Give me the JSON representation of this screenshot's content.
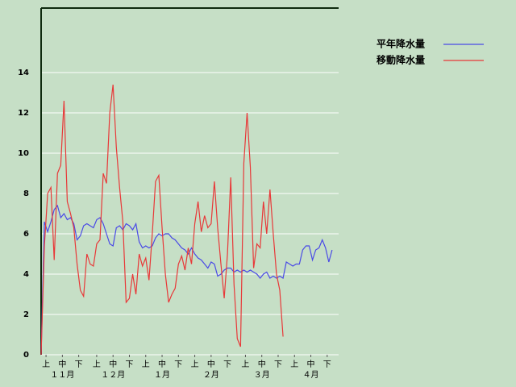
{
  "chart_data": {
    "type": "line",
    "x": [
      0,
      2,
      4,
      6,
      8,
      10,
      12,
      14,
      16,
      18,
      20,
      22,
      24,
      26,
      28,
      30,
      32,
      34,
      36,
      38,
      40,
      42,
      44,
      46,
      48,
      50,
      52,
      54,
      56,
      58,
      60,
      62,
      64,
      66,
      68,
      70,
      72,
      74,
      76,
      78,
      80,
      82,
      84,
      86,
      88,
      90,
      92,
      94,
      96,
      98,
      100,
      102,
      104,
      106,
      108,
      110,
      112,
      114,
      116,
      118,
      120,
      122,
      124,
      126,
      128,
      130,
      132,
      134,
      136,
      138,
      140,
      142,
      144,
      146,
      148,
      150,
      152,
      154,
      156,
      158,
      160,
      162,
      164,
      166,
      168,
      170,
      172,
      174,
      176,
      178
    ],
    "series": [
      {
        "name": "平年降水量",
        "color": "#4a4ae6",
        "values": [
          0,
          6.6,
          6.1,
          6.6,
          7.2,
          7.4,
          6.8,
          7.0,
          6.7,
          6.8,
          6.5,
          5.7,
          5.9,
          6.4,
          6.5,
          6.4,
          6.3,
          6.7,
          6.8,
          6.5,
          6.0,
          5.5,
          5.4,
          6.3,
          6.4,
          6.2,
          6.5,
          6.4,
          6.2,
          6.5,
          5.6,
          5.3,
          5.4,
          5.3,
          5.4,
          5.8,
          6.0,
          5.9,
          6.0,
          6.0,
          5.8,
          5.7,
          5.5,
          5.3,
          5.2,
          5.0,
          5.3,
          5.0,
          4.8,
          4.7,
          4.5,
          4.3,
          4.6,
          4.5,
          3.9,
          4.0,
          4.2,
          4.3,
          4.3,
          4.1,
          4.2,
          4.1,
          4.2,
          4.1,
          4.2,
          4.1,
          4.0,
          3.8,
          4.0,
          4.1,
          3.8,
          3.9,
          3.8,
          3.9,
          3.8,
          4.6,
          4.5,
          4.4,
          4.5,
          4.5,
          5.2,
          5.4,
          5.4,
          4.7,
          5.2,
          5.3,
          5.7,
          5.3,
          4.6,
          5.2
        ]
      },
      {
        "name": "移動降水量",
        "color": "#e83838",
        "values": [
          0,
          5.4,
          8.0,
          8.3,
          4.7,
          9.0,
          9.4,
          12.6,
          7.6,
          7.0,
          6.3,
          4.5,
          3.2,
          2.9,
          5.0,
          4.5,
          4.4,
          5.5,
          5.7,
          9.0,
          8.5,
          12.0,
          13.4,
          10.3,
          8.3,
          6.6,
          2.6,
          2.8,
          4.0,
          3.0,
          5.0,
          4.4,
          4.8,
          3.7,
          6.0,
          8.6,
          8.9,
          6.3,
          4.0,
          2.6,
          3.0,
          3.3,
          4.5,
          4.9,
          4.2,
          5.3,
          4.5,
          6.5,
          7.6,
          6.1,
          6.9,
          6.3,
          6.5,
          8.6,
          6.3,
          4.5,
          2.8,
          5.0,
          8.8,
          3.5,
          0.8,
          0.4,
          9.5,
          12.0,
          9.3,
          4.3,
          5.5,
          5.3,
          7.6,
          6.0,
          8.2,
          6.0,
          4.0,
          3.2,
          0.9,
          null,
          null,
          null,
          null,
          null,
          null,
          null,
          null,
          null,
          null,
          null,
          null,
          null,
          null,
          null
        ]
      }
    ],
    "xlim": [
      0,
      182
    ],
    "xticks": [
      {
        "value": 3,
        "label": "上"
      },
      {
        "value": 13,
        "label": "中"
      },
      {
        "value": 23,
        "label": "下"
      },
      {
        "value": 34,
        "label": "上"
      },
      {
        "value": 44,
        "label": "中"
      },
      {
        "value": 54,
        "label": "下"
      },
      {
        "value": 64,
        "label": "上"
      },
      {
        "value": 74,
        "label": "中"
      },
      {
        "value": 84,
        "label": "下"
      },
      {
        "value": 94,
        "label": "上"
      },
      {
        "value": 104,
        "label": "中"
      },
      {
        "value": 114,
        "label": "下"
      },
      {
        "value": 125,
        "label": "上"
      },
      {
        "value": 135,
        "label": "中"
      },
      {
        "value": 145,
        "label": "下"
      },
      {
        "value": 155,
        "label": "上"
      },
      {
        "value": 165,
        "label": "中"
      },
      {
        "value": 175,
        "label": "下"
      }
    ],
    "month_labels": [
      {
        "value": 13,
        "label": "１１月"
      },
      {
        "value": 44,
        "label": "１２月"
      },
      {
        "value": 74,
        "label": "１月"
      },
      {
        "value": 104,
        "label": "２月"
      },
      {
        "value": 135,
        "label": "３月"
      },
      {
        "value": 165,
        "label": "４月"
      }
    ],
    "ylim": [
      0,
      17.2
    ],
    "yticks": [
      0,
      2,
      4,
      6,
      8,
      10,
      12,
      14
    ],
    "grid": true
  }
}
